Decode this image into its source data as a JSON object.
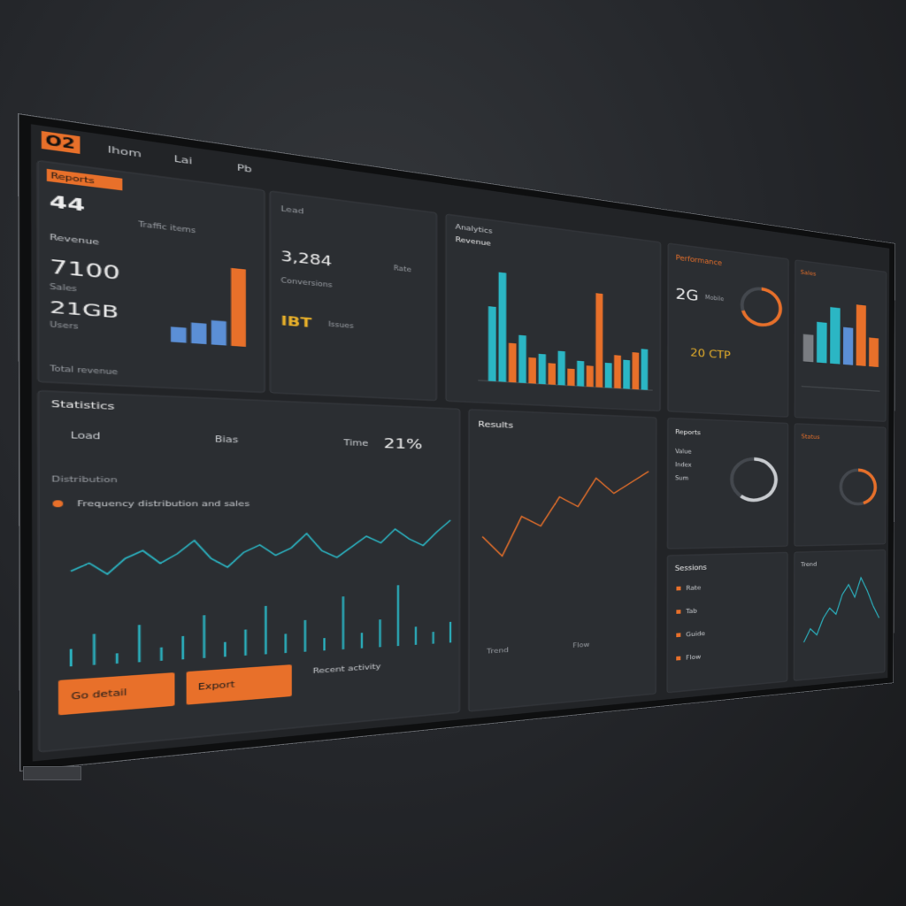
{
  "header": {
    "logo": "O2",
    "nav": [
      "Ihom",
      "Lai",
      "Pb"
    ]
  },
  "panels": [
    {
      "badge": "Reports",
      "value": "44",
      "caption": "Traffic items",
      "label": "Revenue",
      "figure1": "7100",
      "figure1_note": "Sales",
      "figure2": "21GB",
      "figure2_note": "Users",
      "footer": "Total revenue",
      "bars": {
        "values": [
          8,
          11,
          13,
          42
        ],
        "colors": [
          "#5b8fd6",
          "#5b8fd6",
          "#5b8fd6",
          "#e8702a"
        ]
      }
    },
    {
      "heading": "Lead",
      "figure": "3,284",
      "figure_note": "Conversions",
      "note": "Rate",
      "extra": "IBT",
      "extra_note": "Issues"
    },
    {
      "heading": "Analytics",
      "subheading": "Revenue",
      "bars": {
        "values": [
          34,
          50,
          18,
          22,
          12,
          14,
          10,
          16,
          8,
          12,
          10,
          45,
          12,
          16,
          14,
          18,
          20
        ],
        "colors": [
          "#2bb6c4",
          "#2bb6c4",
          "#e8702a",
          "#2bb6c4",
          "#e8702a",
          "#2bb6c4",
          "#e8702a",
          "#2bb6c4",
          "#e8702a",
          "#2bb6c4",
          "#e8702a",
          "#e8702a",
          "#2bb6c4",
          "#e8702a",
          "#2bb6c4",
          "#e8702a",
          "#2bb6c4"
        ]
      }
    },
    {
      "heading": "Performance",
      "figure": "2G",
      "figure_note": "Mobile",
      "extra": "20 CTP",
      "gauge": {
        "value": 70,
        "color": "#e8702a"
      }
    },
    {
      "heading": "Sales",
      "bars": {
        "values": [
          20,
          30,
          42,
          28,
          46,
          22
        ],
        "colors": [
          "#7a7d82",
          "#2bb6c4",
          "#2bb6c4",
          "#5b8fd6",
          "#e8702a",
          "#e8702a"
        ]
      }
    },
    {
      "heading": "Statistics",
      "stats": [
        "Load",
        "Bias",
        "Time"
      ],
      "figure": "21%",
      "caption": "Distribution",
      "legend": "Frequency distribution and sales",
      "buttons": [
        "Go detail",
        "Export"
      ],
      "side_note": "Recent activity",
      "line": {
        "values": [
          30,
          34,
          28,
          36,
          40,
          33,
          38,
          45,
          35,
          30,
          38,
          42,
          36,
          40,
          48,
          38,
          34,
          40,
          46,
          42,
          50,
          44,
          40,
          48,
          55
        ],
        "color": "#2bb6c4"
      },
      "spikes": {
        "values": [
          10,
          18,
          6,
          22,
          8,
          14,
          26,
          9,
          16,
          30,
          12,
          20,
          8,
          34,
          10,
          18,
          40,
          12,
          8,
          14
        ],
        "color": "#2bb6c4"
      }
    },
    {
      "heading": "Results",
      "labels": [
        "Trend",
        "Flow"
      ],
      "line": {
        "values": [
          40,
          30,
          50,
          45,
          60,
          55,
          70,
          62,
          68,
          74
        ],
        "color": "#e8702a"
      }
    },
    {
      "heading": "Reports",
      "lines": [
        "Value",
        "Index",
        "Sum"
      ],
      "gauge": {
        "value": 60,
        "color": "#c9ccd0"
      }
    },
    {
      "heading": "Status",
      "gauge": {
        "value": 45,
        "color": "#e8702a"
      }
    },
    {
      "heading": "Sessions",
      "rows": [
        "Rate",
        "Tab",
        "Guide",
        "Flow"
      ]
    },
    {
      "heading": "Trend",
      "line": {
        "values": [
          10,
          18,
          14,
          24,
          30,
          26,
          38,
          44,
          36,
          48,
          40,
          30,
          22
        ],
        "color": "#2bb6c4"
      }
    }
  ]
}
